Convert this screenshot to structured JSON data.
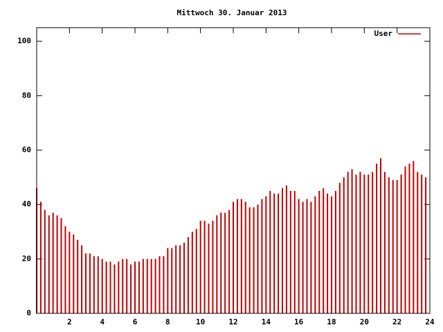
{
  "chart_data": {
    "type": "impulse",
    "title": "Mittwoch 30. Januar 2013",
    "series": [
      {
        "name": "User",
        "color": "#c00000",
        "x": [
          0,
          0.25,
          0.5,
          0.75,
          1,
          1.25,
          1.5,
          1.75,
          2,
          2.25,
          2.5,
          2.75,
          3,
          3.25,
          3.5,
          3.75,
          4,
          4.25,
          4.5,
          4.75,
          5,
          5.25,
          5.5,
          5.75,
          6,
          6.25,
          6.5,
          6.75,
          7,
          7.25,
          7.5,
          7.75,
          8,
          8.25,
          8.5,
          8.75,
          9,
          9.25,
          9.5,
          9.75,
          10,
          10.25,
          10.5,
          10.75,
          11,
          11.25,
          11.5,
          11.75,
          12,
          12.25,
          12.5,
          12.75,
          13,
          13.25,
          13.5,
          13.75,
          14,
          14.25,
          14.5,
          14.75,
          15,
          15.25,
          15.5,
          15.75,
          16,
          16.25,
          16.5,
          16.75,
          17,
          17.25,
          17.5,
          17.75,
          18,
          18.25,
          18.5,
          18.75,
          19,
          19.25,
          19.5,
          19.75,
          20,
          20.25,
          20.5,
          20.75,
          21,
          21.25,
          21.5,
          21.75,
          22,
          22.25,
          22.5,
          22.75,
          23,
          23.25,
          23.5,
          23.75
        ],
        "values": [
          46,
          41,
          38,
          36,
          37,
          36,
          35,
          32,
          30,
          29,
          27,
          25,
          22,
          22,
          21,
          21,
          20,
          19,
          19,
          18,
          19,
          20,
          20,
          18,
          19,
          19,
          20,
          20,
          20,
          20,
          21,
          21,
          24,
          24,
          25,
          25,
          26,
          28,
          30,
          31,
          34,
          34,
          33,
          34,
          36,
          37,
          37,
          38,
          41,
          42,
          42,
          41,
          39,
          39,
          40,
          42,
          43,
          45,
          44,
          44,
          46,
          47,
          45,
          45,
          42,
          41,
          42,
          41,
          43,
          45,
          46,
          44,
          43,
          45,
          48,
          50,
          52,
          53,
          51,
          52,
          51,
          51,
          52,
          55,
          57,
          52,
          50,
          49,
          49,
          51,
          54,
          55,
          56,
          52,
          51,
          50
        ]
      }
    ],
    "xlim": [
      0,
      24
    ],
    "xticks": [
      2,
      4,
      6,
      8,
      10,
      12,
      14,
      16,
      18,
      20,
      22,
      24
    ],
    "ylim": [
      0,
      105
    ],
    "yticks": [
      0,
      20,
      40,
      60,
      80,
      100
    ],
    "legend": "top-right"
  }
}
